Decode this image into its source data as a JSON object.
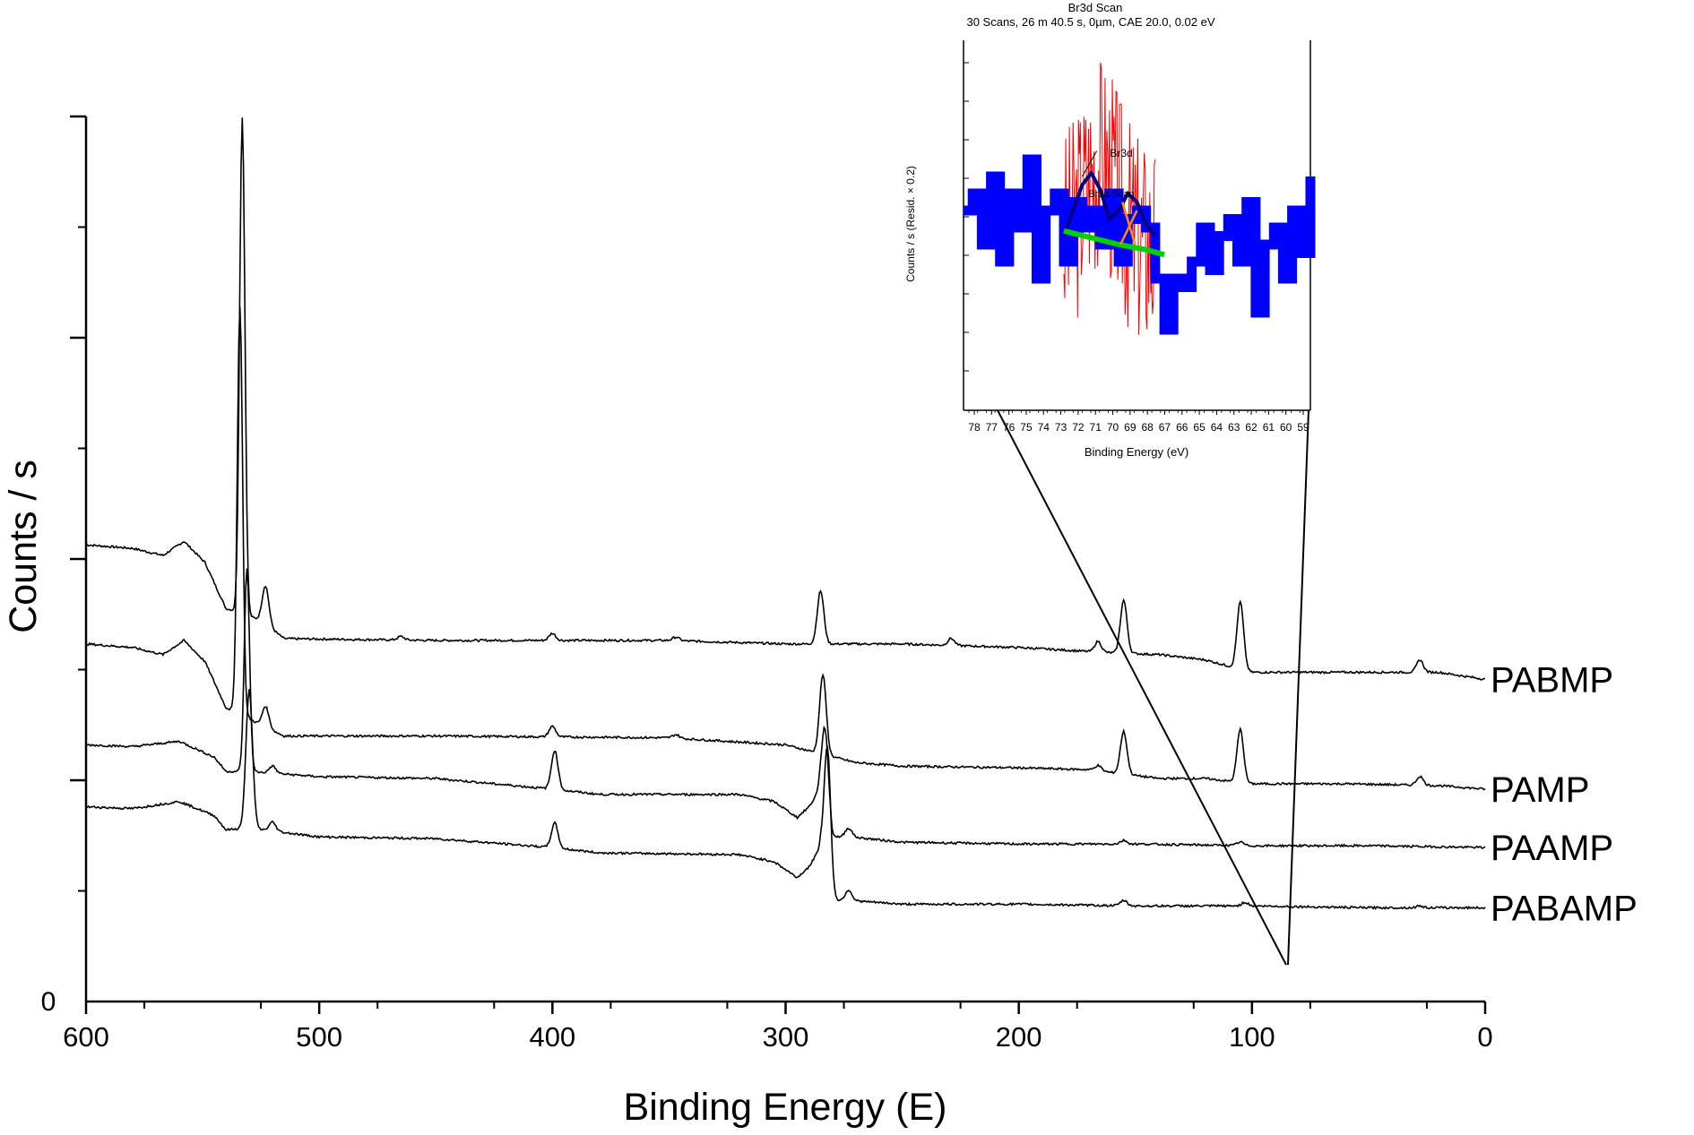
{
  "chart_data": [
    {
      "type": "line",
      "title": "",
      "xlabel": "Binding Energy (E)",
      "ylabel": "Counts / s",
      "xlim": [
        600,
        0
      ],
      "x_ticks": [
        600,
        500,
        400,
        300,
        200,
        100,
        0
      ],
      "y_tick_labels": [
        "0"
      ],
      "grid": false,
      "legend": "labels at right end of each curve",
      "series": [
        {
          "name": "PABMP",
          "baseline": [
            [
              600,
              2.58
            ],
            [
              580,
              2.56
            ],
            [
              567,
              2.52
            ],
            [
              558,
              2.6
            ],
            [
              549,
              2.48
            ],
            [
              540,
              2.22
            ],
            [
              534,
              2.2
            ],
            [
              525,
              2.15
            ],
            [
              515,
              2.05
            ],
            [
              450,
              2.04
            ],
            [
              350,
              2.04
            ],
            [
              300,
              2.02
            ],
            [
              250,
              2.02
            ],
            [
              200,
              2.0
            ],
            [
              160,
              1.97
            ],
            [
              140,
              1.96
            ],
            [
              120,
              1.93
            ],
            [
              100,
              1.86
            ],
            [
              60,
              1.86
            ],
            [
              20,
              1.86
            ],
            [
              0,
              1.82
            ]
          ],
          "peaks": [
            [
              533,
              2.8
            ],
            [
              523,
              0.22
            ],
            [
              465,
              0.02
            ],
            [
              400,
              0.04
            ],
            [
              347,
              0.02
            ],
            [
              285,
              0.3
            ],
            [
              229,
              0.04
            ],
            [
              166,
              0.06
            ],
            [
              155,
              0.3
            ],
            [
              105,
              0.38
            ],
            [
              28,
              0.07
            ]
          ]
        },
        {
          "name": "PAMP",
          "baseline": [
            [
              600,
              2.02
            ],
            [
              580,
              2.0
            ],
            [
              567,
              1.96
            ],
            [
              558,
              2.04
            ],
            [
              549,
              1.92
            ],
            [
              540,
              1.66
            ],
            [
              534,
              1.63
            ],
            [
              525,
              1.56
            ],
            [
              515,
              1.5
            ],
            [
              450,
              1.5
            ],
            [
              350,
              1.49
            ],
            [
              300,
              1.45
            ],
            [
              270,
              1.35
            ],
            [
              250,
              1.33
            ],
            [
              200,
              1.32
            ],
            [
              170,
              1.31
            ],
            [
              140,
              1.26
            ],
            [
              120,
              1.26
            ],
            [
              100,
              1.23
            ],
            [
              60,
              1.23
            ],
            [
              20,
              1.22
            ],
            [
              0,
              1.2
            ]
          ],
          "peaks": [
            [
              534,
              2.3
            ],
            [
              523,
              0.12
            ],
            [
              400,
              0.06
            ],
            [
              347,
              0.02
            ],
            [
              284,
              0.45
            ],
            [
              166,
              0.03
            ],
            [
              155,
              0.24
            ],
            [
              105,
              0.3
            ],
            [
              28,
              0.05
            ]
          ]
        },
        {
          "name": "PAAMP",
          "baseline": [
            [
              600,
              1.45
            ],
            [
              580,
              1.44
            ],
            [
              560,
              1.47
            ],
            [
              545,
              1.38
            ],
            [
              540,
              1.3
            ],
            [
              530,
              1.3
            ],
            [
              500,
              1.27
            ],
            [
              450,
              1.26
            ],
            [
              400,
              1.2
            ],
            [
              380,
              1.17
            ],
            [
              320,
              1.17
            ],
            [
              305,
              1.13
            ],
            [
              295,
              1.04
            ],
            [
              290,
              1.1
            ],
            [
              285,
              1.2
            ],
            [
              280,
              0.93
            ],
            [
              272,
              0.93
            ],
            [
              250,
              0.9
            ],
            [
              200,
              0.89
            ],
            [
              150,
              0.89
            ],
            [
              100,
              0.88
            ],
            [
              50,
              0.88
            ],
            [
              0,
              0.87
            ]
          ],
          "peaks": [
            [
              531,
              1.15
            ],
            [
              520,
              0.04
            ],
            [
              399,
              0.22
            ],
            [
              283,
              0.45
            ],
            [
              273,
              0.05
            ],
            [
              155,
              0.02
            ],
            [
              105,
              0.02
            ]
          ]
        },
        {
          "name": "PABAMP",
          "baseline": [
            [
              600,
              1.1
            ],
            [
              580,
              1.09
            ],
            [
              560,
              1.13
            ],
            [
              545,
              1.05
            ],
            [
              540,
              0.97
            ],
            [
              530,
              0.98
            ],
            [
              500,
              0.93
            ],
            [
              450,
              0.92
            ],
            [
              400,
              0.87
            ],
            [
              380,
              0.84
            ],
            [
              320,
              0.83
            ],
            [
              305,
              0.79
            ],
            [
              295,
              0.7
            ],
            [
              290,
              0.76
            ],
            [
              285,
              0.87
            ],
            [
              280,
              0.57
            ],
            [
              272,
              0.57
            ],
            [
              250,
              0.55
            ],
            [
              200,
              0.55
            ],
            [
              150,
              0.54
            ],
            [
              100,
              0.54
            ],
            [
              50,
              0.53
            ],
            [
              0,
              0.53
            ]
          ],
          "peaks": [
            [
              530,
              0.78
            ],
            [
              520,
              0.05
            ],
            [
              399,
              0.14
            ],
            [
              282,
              0.75
            ],
            [
              273,
              0.06
            ],
            [
              155,
              0.03
            ],
            [
              103,
              0.02
            ],
            [
              28,
              0.01
            ]
          ]
        }
      ]
    },
    {
      "type": "line",
      "title": "Br3d Scan",
      "subtitle": "30 Scans,  26 m 40.5 s,  0µm,  CAE 20.0,  0.02 eV",
      "xlabel": "Binding Energy (eV)",
      "ylabel": "Counts / s  (Resid. × 0.2)",
      "x_tick_labels": [
        "78",
        "77",
        "76",
        "75",
        "74",
        "73",
        "72",
        "71",
        "70",
        "69",
        "68",
        "67",
        "66",
        "65",
        "64",
        "63",
        "62",
        "61",
        "60",
        "59"
      ],
      "xlim": [
        78,
        59
      ],
      "peak_labels": [
        "Br3d",
        "Br3d Scan"
      ],
      "series": [
        {
          "name": "",
          "color": "#0000ff",
          "x": [
            78,
            77.5,
            77,
            76.5,
            76,
            75.5,
            75,
            74.5,
            74,
            73.5,
            73,
            72.5,
            72,
            71.5,
            71,
            70.5,
            70,
            69.5,
            69,
            68.5,
            68,
            67.5,
            67,
            66.5,
            66,
            65.5,
            65,
            64.5,
            64,
            63.5,
            63,
            62.5,
            62,
            61.5,
            61,
            60.5,
            60,
            59.5,
            59
          ],
          "y": [
            0.5,
            0.6,
            0.3,
            0.7,
            0.2,
            0.6,
            0.4,
            0.8,
            0.1,
            0.5,
            0.6,
            0.2,
            0.55,
            0.4,
            0.5,
            0.3,
            0.6,
            0.2,
            0.45,
            0.5,
            0.4,
            0.1,
            -0.2,
            0.1,
            0.05,
            0.2,
            0.4,
            0.15,
            0.35,
            0.45,
            0.2,
            0.55,
            -0.1,
            0.3,
            0.4,
            0.1,
            0.5,
            0.25,
            0.7
          ]
        },
        {
          "name": "",
          "color": "#ff0000",
          "x": [
            72.5,
            72,
            71.5,
            71,
            70.5,
            70,
            69.5,
            69,
            68.5,
            68,
            67.5
          ],
          "y": [
            0.3,
            0.7,
            0.9,
            1.0,
            0.8,
            0.9,
            0.6,
            0.5,
            0.7,
            0.5,
            0.3
          ]
        },
        {
          "name": "",
          "color": "#000080",
          "x": [
            72.5,
            72,
            71.5,
            71,
            70.5,
            70,
            69.5,
            69,
            68.5,
            68,
            67.5
          ],
          "y": [
            0.35,
            0.5,
            0.65,
            0.72,
            0.62,
            0.45,
            0.5,
            0.6,
            0.55,
            0.42,
            0.35
          ]
        },
        {
          "name": "",
          "color": "#00d000",
          "x": [
            72.5,
            71,
            69.5,
            68,
            67
          ],
          "y": [
            0.38,
            0.34,
            0.3,
            0.27,
            0.24
          ]
        }
      ]
    }
  ]
}
